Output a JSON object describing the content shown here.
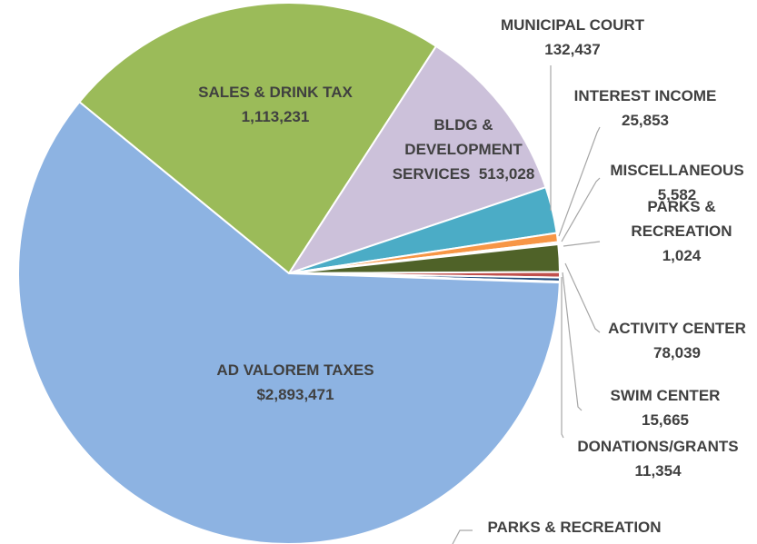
{
  "chart_data": {
    "type": "pie",
    "categories": [
      "SALES & DRINK TAX",
      "BLDG & DEVELOPMENT SERVICES",
      "MUNICIPAL COURT",
      "INTEREST INCOME",
      "MISCELLANEOUS",
      "PARKS & RECREATION",
      "ACTIVITY CENTER",
      "SWIM CENTER",
      "DONATIONS/GRANTS",
      "PARKS & RECREATION",
      "AD VALOREM TAXES"
    ],
    "values": [
      1113231,
      513028,
      132437,
      25853,
      5582,
      1024,
      78039,
      15665,
      11354,
      3000,
      2893471
    ],
    "value_labels": [
      "1,113,231",
      "513,028",
      "132,437",
      "25,853",
      "5,582",
      "1,024",
      "78,039",
      "15,665",
      "11,354",
      null,
      "$2,893,471"
    ],
    "colors": [
      "#9bbb59",
      "#ccc1da",
      "#4bacc6",
      "#f79646",
      "#a6a6a6",
      "#7f7f7f",
      "#4f6228",
      "#c0504d",
      "#1f497d",
      "#403152",
      "#8db3e2"
    ]
  }
}
